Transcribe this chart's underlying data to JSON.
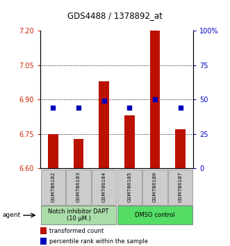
{
  "title": "GDS4488 / 1378892_at",
  "samples": [
    "GSM786182",
    "GSM786183",
    "GSM786184",
    "GSM786185",
    "GSM786186",
    "GSM786187"
  ],
  "transformed_counts": [
    6.75,
    6.73,
    6.98,
    6.83,
    7.2,
    6.77
  ],
  "percentile_ranks": [
    44,
    44,
    49,
    44,
    50,
    44
  ],
  "ylim_left": [
    6.6,
    7.2
  ],
  "yticks_left": [
    6.6,
    6.75,
    6.9,
    7.05,
    7.2
  ],
  "yticks_right": [
    0,
    25,
    50,
    75,
    100
  ],
  "ylim_right": [
    0,
    100
  ],
  "group_labels": [
    "Notch inhibitor DAPT\n(10 μM.)",
    "DMSO control"
  ],
  "group_colors": [
    "#AADDAA",
    "#55DD66"
  ],
  "bar_color": "#BB1100",
  "dot_color": "#0000BB",
  "ylabel_left_color": "#CC2200",
  "ylabel_right_color": "#0000CC",
  "agent_label": "agent",
  "legend_bar_label": "transformed count",
  "legend_dot_label": "percentile rank within the sample",
  "bar_bottom": 6.6,
  "right_ytick_labels": [
    "0",
    "25",
    "50",
    "75",
    "100%"
  ]
}
